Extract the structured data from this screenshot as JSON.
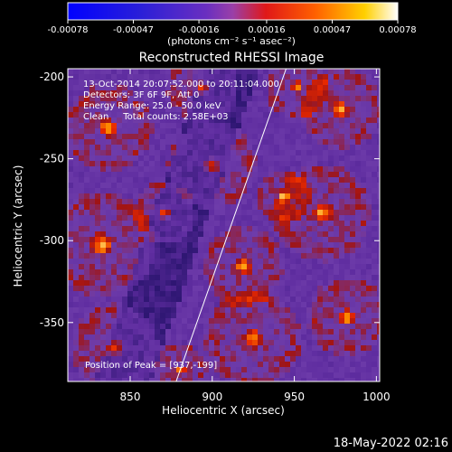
{
  "chart_data": {
    "type": "heatmap",
    "title": "Reconstructed RHESSI Image",
    "xlabel": "Heliocentric X (arcsec)",
    "ylabel": "Heliocentric Y (arcsec)",
    "xlim": [
      812,
      1002
    ],
    "ylim": [
      -386,
      -195
    ],
    "x_ticks": [
      850,
      900,
      950,
      1000
    ],
    "y_ticks": [
      -200,
      -250,
      -300,
      -350
    ],
    "colorbar": {
      "ticks": [
        "-0.00078",
        "-0.00047",
        "-0.00016",
        "0.00016",
        "0.00047",
        "0.00078"
      ],
      "range": [
        -0.00078,
        0.00078
      ],
      "unit_label": "(photons cm⁻² s⁻¹ asec⁻²)"
    },
    "annotations": {
      "time_range": "13-Oct-2014 20:07:52.000 to 20:11:04.000",
      "detectors": "Detectors: 3F 6F 9F, Att 0",
      "energy": "Energy Range: 25.0 - 50.0 keV",
      "clean": "Clean     Total counts: 2.58E+03",
      "peak": "Position of Peak = [937,-199]"
    },
    "limb_line": {
      "x": [
        878,
        945
      ],
      "y": [
        -386,
        -195
      ]
    },
    "peak": [
      937,
      -199
    ]
  },
  "footer": {
    "date": "18-May-2022 02:16"
  }
}
